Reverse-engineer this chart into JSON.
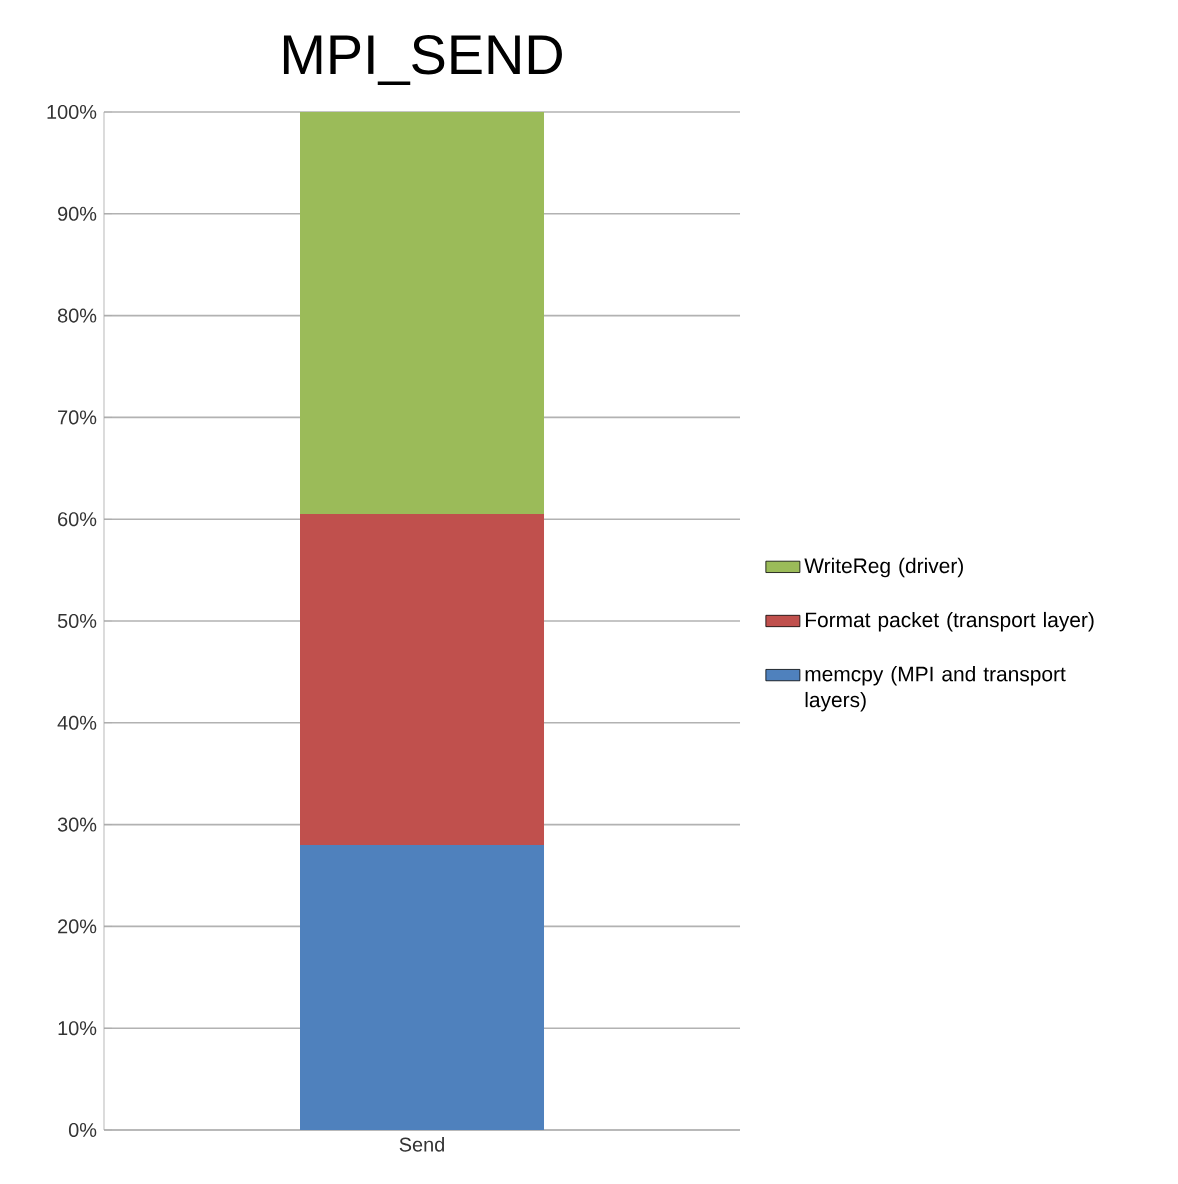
{
  "chart_data": {
    "type": "bar",
    "title": "MPI_SEND",
    "categories": [
      "Send"
    ],
    "stacked": true,
    "series": [
      {
        "name": "memcpy (MPI and transport layers)",
        "color": "#4f81bd",
        "values": [
          28
        ]
      },
      {
        "name": "Format packet (transport layer)",
        "color": "#c0504d",
        "values": [
          32.5
        ]
      },
      {
        "name": "WriteReg (driver)",
        "color": "#9bbb59",
        "values": [
          39.5
        ]
      }
    ],
    "ylim": [
      0,
      100
    ],
    "yticks": [
      {
        "value": 0,
        "label": "0%"
      },
      {
        "value": 10,
        "label": "10%"
      },
      {
        "value": 20,
        "label": "20%"
      },
      {
        "value": 30,
        "label": "30%"
      },
      {
        "value": 40,
        "label": "40%"
      },
      {
        "value": 50,
        "label": "50%"
      },
      {
        "value": 60,
        "label": "60%"
      },
      {
        "value": 70,
        "label": "70%"
      },
      {
        "value": 80,
        "label": "80%"
      },
      {
        "value": 90,
        "label": "90%"
      },
      {
        "value": 100,
        "label": "100%"
      }
    ],
    "grid": "y",
    "legend": "right"
  }
}
